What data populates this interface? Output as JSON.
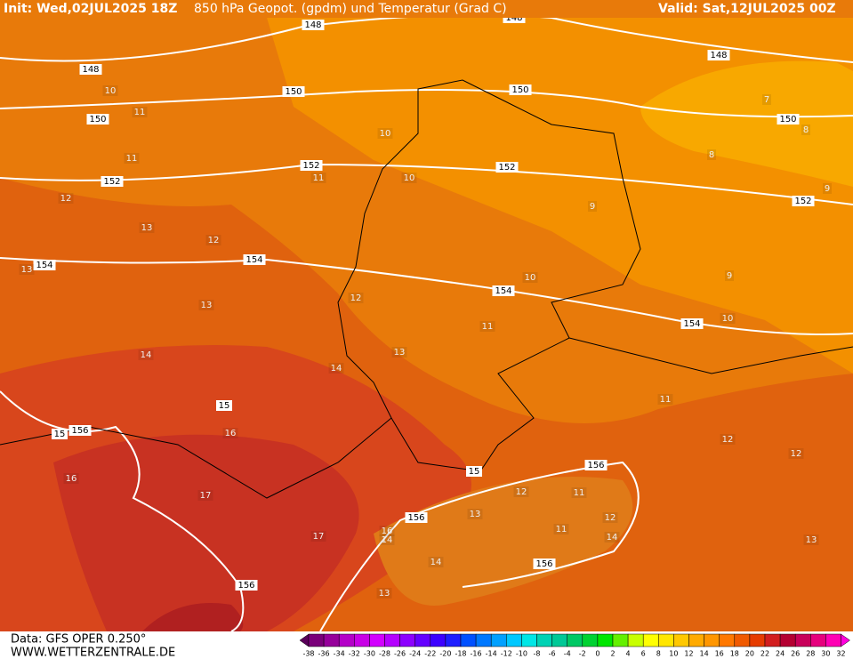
{
  "header": {
    "init": "Init: Wed,02JUL2025 18Z",
    "title": "850 hPa Geopot. (gpdm) und Temperatur (Grad C)",
    "valid": "Valid: Sat,12JUL2025 00Z"
  },
  "geopotential_labels": [
    148,
    148,
    148,
    148,
    150,
    150,
    150,
    150,
    152,
    152,
    152,
    152,
    154,
    154,
    154,
    154,
    156,
    156,
    156,
    156,
    156,
    15,
    15,
    15
  ],
  "temperature_labels": [
    10,
    11,
    10,
    11,
    10,
    11,
    12,
    13,
    12,
    9,
    7,
    8,
    8,
    9,
    9,
    10,
    10,
    13,
    13,
    12,
    11,
    13,
    14,
    14,
    11,
    12,
    12,
    16,
    16,
    17,
    17,
    16,
    14,
    13,
    12,
    11,
    12,
    11,
    14,
    14,
    13,
    13
  ],
  "footer": {
    "data": "Data: GFS OPER 0.250°",
    "site": "WWW.WETTERZENTRALE.DE"
  },
  "legend": {
    "labels": [
      -38,
      -36,
      -34,
      -32,
      -30,
      -28,
      -26,
      -24,
      -22,
      -20,
      -18,
      -16,
      -14,
      -12,
      -10,
      -8,
      -6,
      -4,
      -2,
      0,
      2,
      4,
      6,
      8,
      10,
      12,
      14,
      16,
      18,
      20,
      22,
      24,
      26,
      28,
      30,
      32
    ],
    "colors": [
      "#5a005a",
      "#7a007a",
      "#96009b",
      "#b400c8",
      "#c800e6",
      "#d200ff",
      "#b400ff",
      "#8c00ff",
      "#6400ff",
      "#3c00ff",
      "#1e1eff",
      "#0050ff",
      "#0078ff",
      "#00a0ff",
      "#00c8ff",
      "#00e6e6",
      "#00d2b4",
      "#00c896",
      "#00c864",
      "#00d232",
      "#00e600",
      "#64f000",
      "#c8ff00",
      "#ffff00",
      "#ffe600",
      "#ffc800",
      "#ffaa00",
      "#ff9600",
      "#ff7800",
      "#f05a00",
      "#e63c00",
      "#d21e1e",
      "#b40032",
      "#c8005a",
      "#e6007d",
      "#ff00b4",
      "#ff00dc"
    ]
  }
}
